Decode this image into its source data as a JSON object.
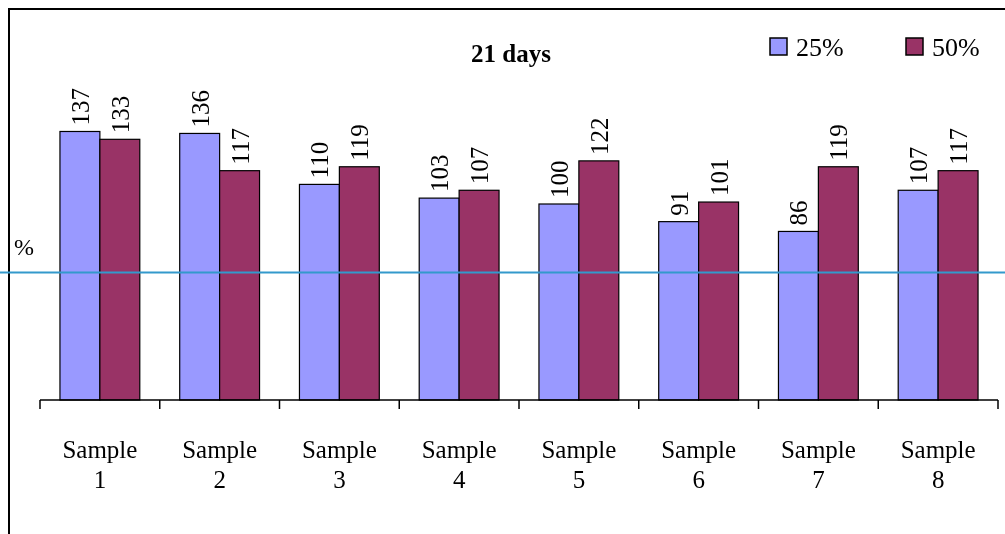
{
  "chart_data": {
    "type": "bar",
    "title": "21 days",
    "categories": [
      "Sample\n1",
      "Sample\n2",
      "Sample\n3",
      "Sample\n4",
      "Sample\n5",
      "Sample\n6",
      "Sample\n7",
      "Sample\n8"
    ],
    "series": [
      {
        "name": "25%",
        "color": "#9999ff",
        "values": [
          137,
          136,
          110,
          103,
          100,
          91,
          86,
          107
        ]
      },
      {
        "name": "50%",
        "color": "#993366",
        "values": [
          133,
          117,
          119,
          107,
          122,
          101,
          119,
          117
        ]
      }
    ],
    "ylim": [
      0,
      200
    ],
    "tick_labels": "x",
    "data_labels": true,
    "legend": "top right",
    "ref_lines": [
      {
        "axis": "y",
        "value": 65,
        "label": "%",
        "color": "#3399cc"
      }
    ]
  }
}
